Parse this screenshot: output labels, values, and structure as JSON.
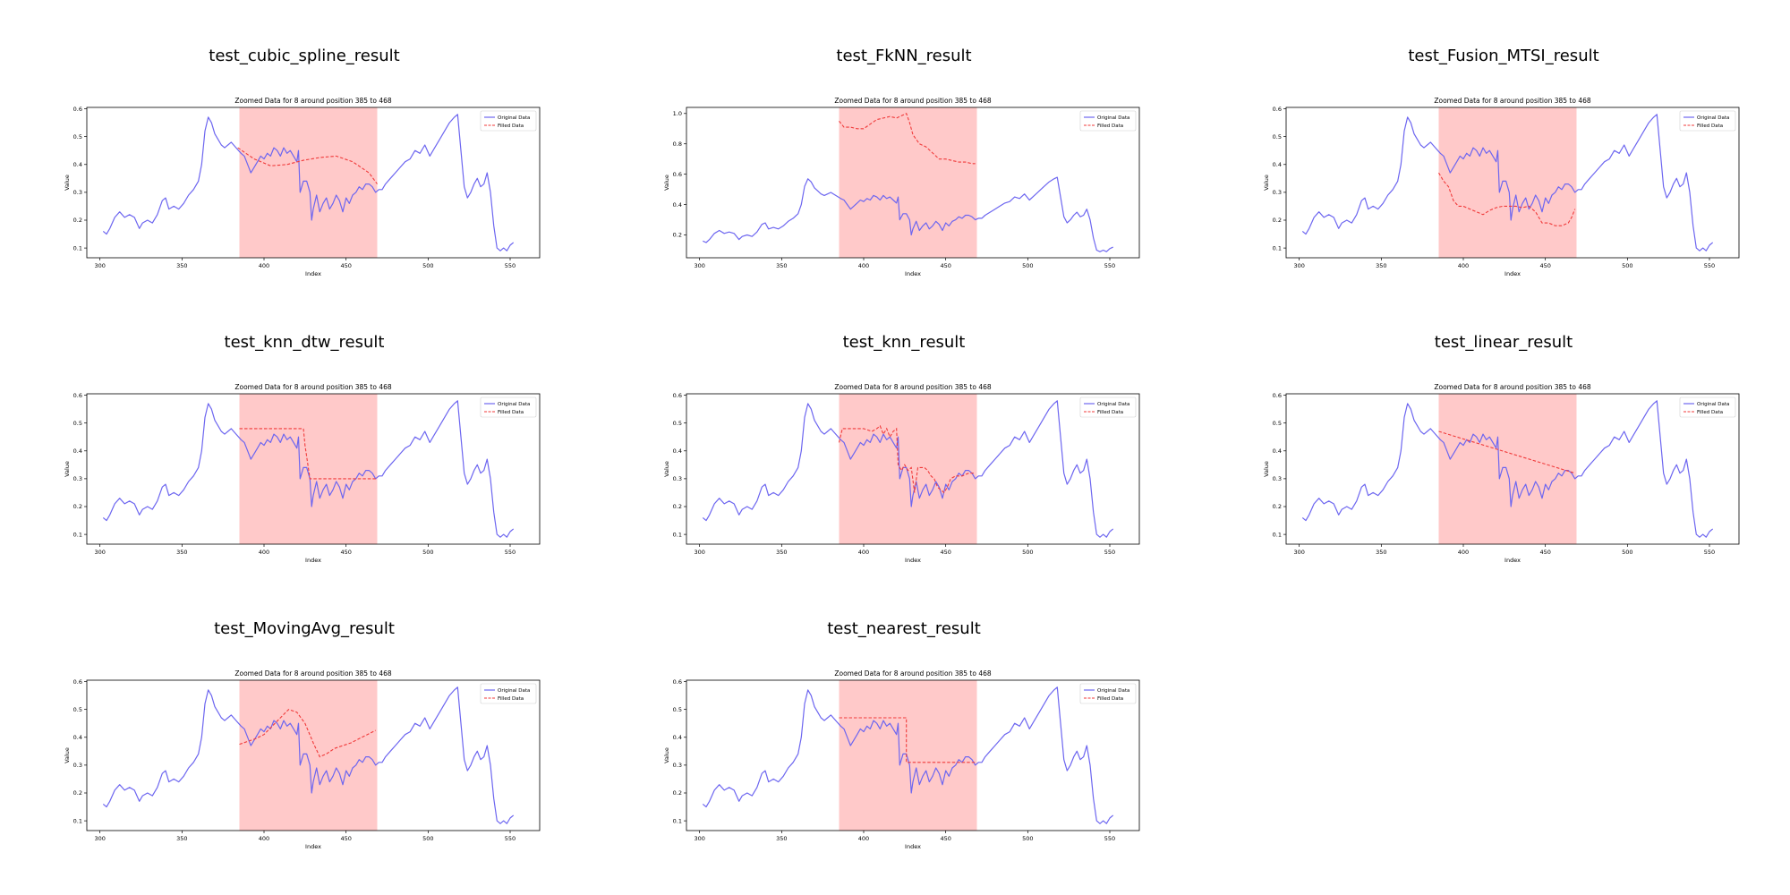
{
  "colors": {
    "original": "#6d66f0",
    "filled": "#f03a3a",
    "gap": "#ffc9c9",
    "axes": "#000000"
  },
  "legend_position": "upper right",
  "chart_data": [
    {
      "type": "line",
      "figure_title": "test_cubic_spline_result",
      "title": "Zoomed Data for 8 around position 385 to 468",
      "xlabel": "Index",
      "ylabel": "Value",
      "xlim": [
        292,
        568
      ],
      "ylim": [
        0.065,
        0.605
      ],
      "xticks": [
        300,
        350,
        400,
        450,
        500,
        550
      ],
      "xtick_labels": [
        "300",
        "350",
        "400",
        "450",
        "500",
        "550"
      ],
      "yticks": [
        0.1,
        0.2,
        0.3,
        0.4,
        0.5,
        0.6
      ],
      "ytick_labels": [
        "0.1",
        "0.2",
        "0.3",
        "0.4",
        "0.5",
        "0.6"
      ],
      "gap": [
        385,
        469
      ],
      "legend": [
        "Original Data",
        "Filled Data"
      ],
      "series": [
        {
          "x": [
            384,
            394,
            404,
            414,
            424,
            434,
            444,
            454,
            464,
            469
          ],
          "y": [
            0.46,
            0.42,
            0.395,
            0.4,
            0.415,
            0.425,
            0.43,
            0.41,
            0.37,
            0.33
          ]
        }
      ]
    },
    {
      "type": "line",
      "figure_title": "test_FkNN_result",
      "title": "Zoomed Data for 8 around position 385 to 468",
      "xlabel": "Index",
      "ylabel": "Value",
      "xlim": [
        292,
        568
      ],
      "ylim": [
        0.05,
        1.04
      ],
      "xticks": [
        300,
        350,
        400,
        450,
        500,
        550
      ],
      "xtick_labels": [
        "300",
        "350",
        "400",
        "450",
        "500",
        "550"
      ],
      "yticks": [
        0.2,
        0.4,
        0.6,
        0.8,
        1.0
      ],
      "ytick_labels": [
        "0.2",
        "0.4",
        "0.6",
        "0.8",
        "1.0"
      ],
      "gap": [
        385,
        469
      ],
      "legend": [
        "Original Data",
        "Filled Data"
      ],
      "series": [
        {
          "x": [
            385,
            388,
            392,
            396,
            400,
            404,
            408,
            412,
            416,
            420,
            424,
            426,
            428,
            430,
            434,
            438,
            442,
            446,
            450,
            454,
            458,
            462,
            466,
            468
          ],
          "y": [
            0.95,
            0.91,
            0.91,
            0.9,
            0.9,
            0.93,
            0.96,
            0.97,
            0.98,
            0.97,
            0.99,
            1.0,
            0.94,
            0.86,
            0.8,
            0.78,
            0.74,
            0.7,
            0.7,
            0.69,
            0.68,
            0.68,
            0.67,
            0.67
          ]
        }
      ]
    },
    {
      "type": "line",
      "figure_title": "test_Fusion_MTSI_result",
      "title": "Zoomed Data for 8 around position 385 to 468",
      "xlabel": "Index",
      "ylabel": "Value",
      "xlim": [
        292,
        568
      ],
      "ylim": [
        0.065,
        0.605
      ],
      "xticks": [
        300,
        350,
        400,
        450,
        500,
        550
      ],
      "xtick_labels": [
        "300",
        "350",
        "400",
        "450",
        "500",
        "550"
      ],
      "yticks": [
        0.1,
        0.2,
        0.3,
        0.4,
        0.5,
        0.6
      ],
      "ytick_labels": [
        "0.1",
        "0.2",
        "0.3",
        "0.4",
        "0.5",
        "0.6"
      ],
      "gap": [
        385,
        469
      ],
      "legend": [
        "Original Data",
        "Filled Data"
      ],
      "series": [
        {
          "x": [
            385,
            388,
            391,
            394,
            397,
            400,
            404,
            408,
            412,
            416,
            420,
            424,
            428,
            432,
            436,
            440,
            444,
            448,
            452,
            456,
            460,
            464,
            466,
            468
          ],
          "y": [
            0.37,
            0.34,
            0.32,
            0.27,
            0.25,
            0.25,
            0.24,
            0.23,
            0.22,
            0.235,
            0.245,
            0.25,
            0.25,
            0.25,
            0.245,
            0.25,
            0.23,
            0.19,
            0.19,
            0.18,
            0.18,
            0.19,
            0.21,
            0.24
          ]
        }
      ]
    },
    {
      "type": "line",
      "figure_title": "test_knn_dtw_result",
      "title": "Zoomed Data for 8 around position 385 to 468",
      "xlabel": "Index",
      "ylabel": "Value",
      "xlim": [
        292,
        568
      ],
      "ylim": [
        0.065,
        0.605
      ],
      "xticks": [
        300,
        350,
        400,
        450,
        500,
        550
      ],
      "xtick_labels": [
        "300",
        "350",
        "400",
        "450",
        "500",
        "550"
      ],
      "yticks": [
        0.1,
        0.2,
        0.3,
        0.4,
        0.5,
        0.6
      ],
      "ytick_labels": [
        "0.1",
        "0.2",
        "0.3",
        "0.4",
        "0.5",
        "0.6"
      ],
      "gap": [
        385,
        469
      ],
      "legend": [
        "Original Data",
        "Filled Data"
      ],
      "series": [
        {
          "x": [
            385,
            424,
            425,
            428,
            468
          ],
          "y": [
            0.48,
            0.48,
            0.42,
            0.3,
            0.3
          ]
        }
      ]
    },
    {
      "type": "line",
      "figure_title": "test_knn_result",
      "title": "Zoomed Data for 8 around position 385 to 468",
      "xlabel": "Index",
      "ylabel": "Value",
      "xlim": [
        292,
        568
      ],
      "ylim": [
        0.065,
        0.605
      ],
      "xticks": [
        300,
        350,
        400,
        450,
        500,
        550
      ],
      "xtick_labels": [
        "300",
        "350",
        "400",
        "450",
        "500",
        "550"
      ],
      "yticks": [
        0.1,
        0.2,
        0.3,
        0.4,
        0.5,
        0.6
      ],
      "ytick_labels": [
        "0.1",
        "0.2",
        "0.3",
        "0.4",
        "0.5",
        "0.6"
      ],
      "gap": [
        385,
        469
      ],
      "legend": [
        "Original Data",
        "Filled Data"
      ],
      "series": [
        {
          "x": [
            385,
            387,
            390,
            395,
            400,
            405,
            408,
            410,
            412,
            414,
            416,
            418,
            420,
            421,
            423,
            425,
            427,
            429,
            431,
            433,
            435,
            437,
            439,
            441,
            443,
            445,
            447,
            449,
            451,
            453,
            456,
            460,
            464,
            468
          ],
          "y": [
            0.43,
            0.48,
            0.48,
            0.48,
            0.48,
            0.47,
            0.48,
            0.49,
            0.46,
            0.48,
            0.45,
            0.47,
            0.48,
            0.35,
            0.33,
            0.35,
            0.33,
            0.34,
            0.25,
            0.34,
            0.34,
            0.34,
            0.33,
            0.31,
            0.3,
            0.27,
            0.26,
            0.25,
            0.27,
            0.3,
            0.31,
            0.31,
            0.32,
            0.32
          ]
        }
      ]
    },
    {
      "type": "line",
      "figure_title": "test_linear_result",
      "title": "Zoomed Data for 8 around position 385 to 468",
      "xlabel": "Index",
      "ylabel": "Value",
      "xlim": [
        292,
        568
      ],
      "ylim": [
        0.065,
        0.605
      ],
      "xticks": [
        300,
        350,
        400,
        450,
        500,
        550
      ],
      "xtick_labels": [
        "300",
        "350",
        "400",
        "450",
        "500",
        "550"
      ],
      "yticks": [
        0.1,
        0.2,
        0.3,
        0.4,
        0.5,
        0.6
      ],
      "ytick_labels": [
        "0.1",
        "0.2",
        "0.3",
        "0.4",
        "0.5",
        "0.6"
      ],
      "gap": [
        385,
        469
      ],
      "legend": [
        "Original Data",
        "Filled Data"
      ],
      "series": [
        {
          "x": [
            385,
            468
          ],
          "y": [
            0.47,
            0.32
          ]
        }
      ]
    },
    {
      "type": "line",
      "figure_title": "test_MovingAvg_result",
      "title": "Zoomed Data for 8 around position 385 to 468",
      "xlabel": "Index",
      "ylabel": "Value",
      "xlim": [
        292,
        568
      ],
      "ylim": [
        0.065,
        0.605
      ],
      "xticks": [
        300,
        350,
        400,
        450,
        500,
        550
      ],
      "xtick_labels": [
        "300",
        "350",
        "400",
        "450",
        "500",
        "550"
      ],
      "yticks": [
        0.1,
        0.2,
        0.3,
        0.4,
        0.5,
        0.6
      ],
      "ytick_labels": [
        "0.1",
        "0.2",
        "0.3",
        "0.4",
        "0.5",
        "0.6"
      ],
      "gap": [
        385,
        469
      ],
      "legend": [
        "Original Data",
        "Filled Data"
      ],
      "series": [
        {
          "x": [
            385,
            390,
            395,
            400,
            405,
            410,
            415,
            420,
            425,
            430,
            434,
            438,
            443,
            448,
            453,
            458,
            463,
            468
          ],
          "y": [
            0.375,
            0.385,
            0.395,
            0.41,
            0.44,
            0.47,
            0.5,
            0.49,
            0.45,
            0.38,
            0.33,
            0.34,
            0.36,
            0.37,
            0.38,
            0.395,
            0.41,
            0.425
          ]
        }
      ]
    },
    {
      "type": "line",
      "figure_title": "test_nearest_result",
      "title": "Zoomed Data for 8 around position 385 to 468",
      "xlabel": "Index",
      "ylabel": "Value",
      "xlim": [
        292,
        568
      ],
      "ylim": [
        0.065,
        0.605
      ],
      "xticks": [
        300,
        350,
        400,
        450,
        500,
        550
      ],
      "xtick_labels": [
        "300",
        "350",
        "400",
        "450",
        "500",
        "550"
      ],
      "yticks": [
        0.1,
        0.2,
        0.3,
        0.4,
        0.5,
        0.6
      ],
      "ytick_labels": [
        "0.1",
        "0.2",
        "0.3",
        "0.4",
        "0.5",
        "0.6"
      ],
      "gap": [
        385,
        469
      ],
      "legend": [
        "Original Data",
        "Filled Data"
      ],
      "series": [
        {
          "x": [
            385,
            426,
            426,
            468
          ],
          "y": [
            0.47,
            0.47,
            0.31,
            0.31
          ]
        }
      ]
    }
  ],
  "original_data": {
    "x": [
      302,
      304,
      306,
      309,
      312,
      315,
      318,
      321,
      324,
      326,
      329,
      332,
      335,
      338,
      340,
      342,
      345,
      348,
      351,
      354,
      357,
      360,
      362,
      364,
      366,
      368,
      370,
      372,
      374,
      376,
      378,
      380,
      383,
      386,
      388,
      390,
      392,
      394,
      396,
      398,
      400,
      402,
      404,
      406,
      408,
      410,
      412,
      414,
      416,
      418,
      420,
      421,
      422,
      424,
      426,
      428,
      429,
      430,
      432,
      434,
      436,
      438,
      440,
      442,
      444,
      446,
      448,
      450,
      452,
      454,
      456,
      458,
      460,
      462,
      464,
      466,
      468,
      470,
      472,
      474,
      477,
      480,
      483,
      486,
      489,
      492,
      495,
      498,
      501,
      504,
      507,
      510,
      513,
      516,
      518,
      520,
      522,
      524,
      526,
      528,
      530,
      532,
      534,
      536,
      538,
      540,
      542,
      544,
      546,
      548,
      550,
      552
    ],
    "y": [
      0.16,
      0.15,
      0.17,
      0.21,
      0.23,
      0.21,
      0.22,
      0.21,
      0.17,
      0.19,
      0.2,
      0.19,
      0.22,
      0.27,
      0.28,
      0.24,
      0.25,
      0.24,
      0.26,
      0.29,
      0.31,
      0.34,
      0.4,
      0.52,
      0.57,
      0.55,
      0.51,
      0.49,
      0.47,
      0.46,
      0.47,
      0.48,
      0.46,
      0.44,
      0.43,
      0.4,
      0.37,
      0.39,
      0.41,
      0.43,
      0.42,
      0.44,
      0.43,
      0.46,
      0.45,
      0.43,
      0.46,
      0.44,
      0.45,
      0.43,
      0.41,
      0.45,
      0.3,
      0.34,
      0.34,
      0.3,
      0.2,
      0.24,
      0.29,
      0.23,
      0.26,
      0.28,
      0.24,
      0.26,
      0.29,
      0.27,
      0.23,
      0.28,
      0.26,
      0.29,
      0.3,
      0.32,
      0.31,
      0.33,
      0.33,
      0.32,
      0.3,
      0.31,
      0.31,
      0.33,
      0.35,
      0.37,
      0.39,
      0.41,
      0.42,
      0.45,
      0.44,
      0.47,
      0.43,
      0.46,
      0.49,
      0.52,
      0.55,
      0.57,
      0.58,
      0.45,
      0.32,
      0.28,
      0.3,
      0.33,
      0.35,
      0.32,
      0.33,
      0.37,
      0.3,
      0.18,
      0.1,
      0.09,
      0.1,
      0.09,
      0.11,
      0.12
    ]
  }
}
